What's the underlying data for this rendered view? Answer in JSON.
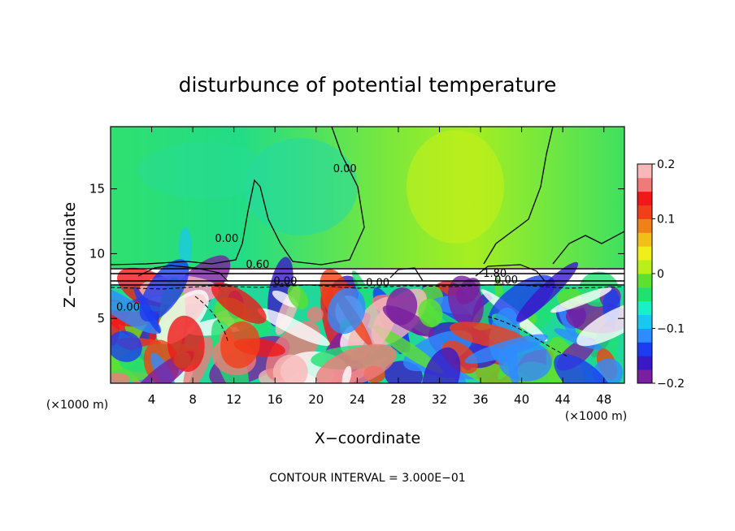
{
  "chart_data": {
    "type": "heatmap",
    "title": "disturbunce of potential temperature",
    "xlabel": "X−coordinate",
    "ylabel": "Z−coordinate",
    "x_unit_left": "(×1000 m)",
    "x_unit_right": "(×1000 m)",
    "xlim": [
      0,
      50
    ],
    "ylim": [
      0,
      19.8
    ],
    "x_ticks": [
      4,
      8,
      12,
      16,
      20,
      24,
      28,
      32,
      36,
      40,
      44,
      48
    ],
    "y_ticks": [
      5,
      10,
      15
    ],
    "colorbar": {
      "min": -0.2,
      "max": 0.2,
      "ticks": [
        {
          "value": 0.2,
          "label": "0.2"
        },
        {
          "value": 0.1,
          "label": "0.1"
        },
        {
          "value": 0,
          "label": "0"
        },
        {
          "value": -0.1,
          "label": "−0.1"
        },
        {
          "value": -0.2,
          "label": "−0.2"
        }
      ],
      "colors": [
        "#7a1fa0",
        "#3a18c8",
        "#1c3cf0",
        "#2f8cff",
        "#18c8f0",
        "#18f0c8",
        "#20e070",
        "#5ee030",
        "#b8f018",
        "#f0f018",
        "#f0c018",
        "#f08018",
        "#f04018",
        "#f01818",
        "#f07a7a",
        "#f8b8b8"
      ]
    },
    "contour_labels": [
      {
        "text": "0.00",
        "x": 22.8,
        "z": 16.3
      },
      {
        "text": "0.00",
        "x": 11.3,
        "z": 10.9
      },
      {
        "text": "0.60",
        "x": 14.3,
        "z": 8.9
      },
      {
        "text": "0.00",
        "x": 17.0,
        "z": 7.6
      },
      {
        "text": "0.00",
        "x": 26.0,
        "z": 7.5
      },
      {
        "text": "1.80",
        "x": 37.4,
        "z": 8.2
      },
      {
        "text": "0.00",
        "x": 38.5,
        "z": 7.7
      },
      {
        "text": "0.00",
        "x": 1.7,
        "z": 5.6
      }
    ],
    "contour_interval_label": "CONTOUR INTERVAL = 3.000E−01"
  }
}
